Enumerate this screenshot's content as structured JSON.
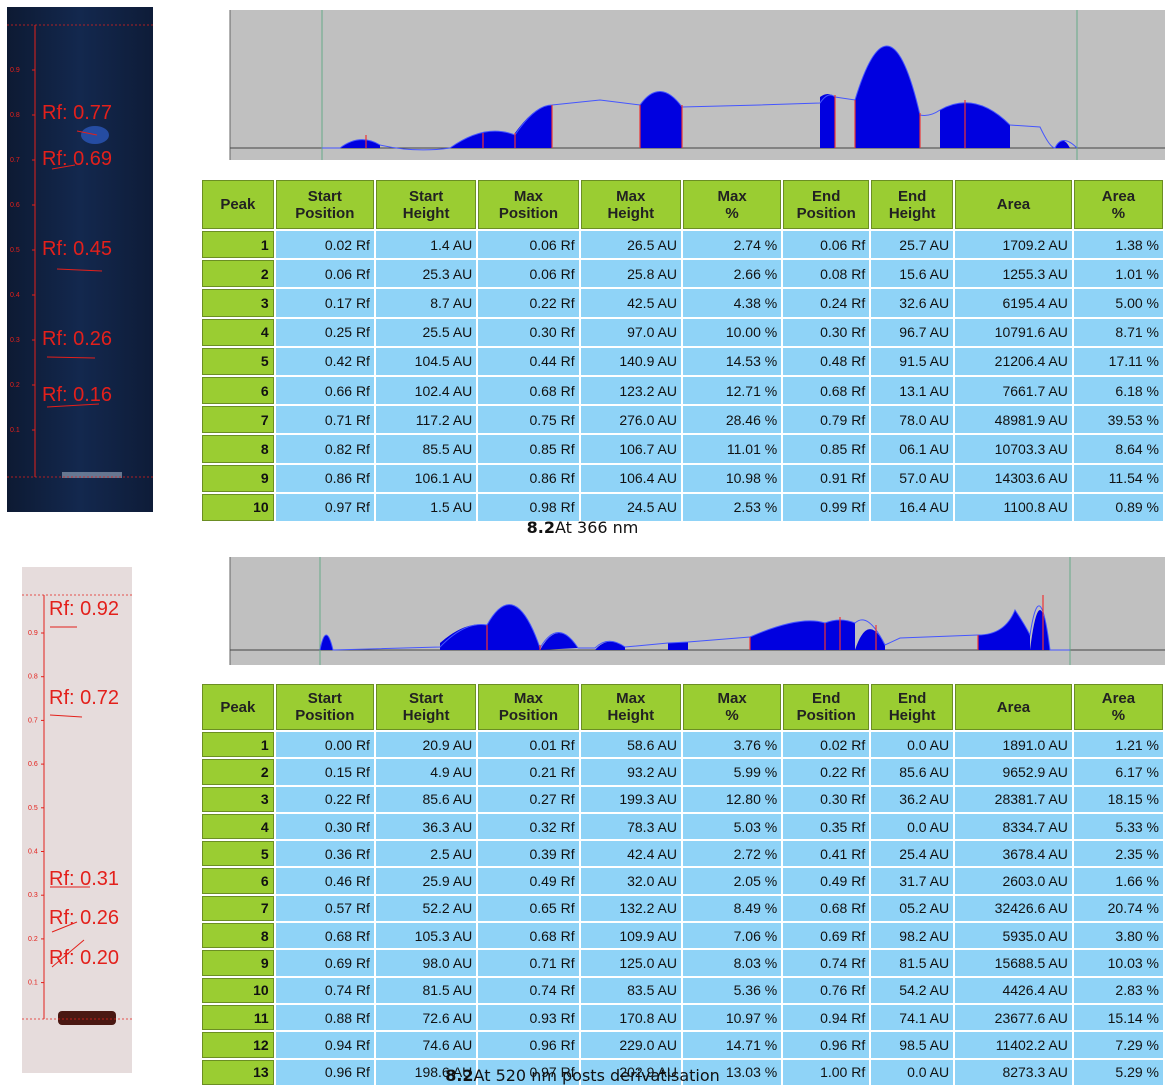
{
  "panels": [
    {
      "plate": {
        "rf_labels": [
          "Rf: 0.77",
          "Rf: 0.69",
          "Rf: 0.45",
          "Rf: 0.26",
          "Rf: 0.16"
        ],
        "ticks": [
          "0.9",
          "0.8",
          "0.7",
          "0.6",
          "0.5",
          "0.4",
          "0.3",
          "0.2",
          "0.1"
        ]
      },
      "table": {
        "header": [
          [
            "Peak"
          ],
          [
            "Start",
            "Position"
          ],
          [
            "Start",
            "Height"
          ],
          [
            "Max",
            "Position"
          ],
          [
            "Max",
            "Height"
          ],
          [
            "Max",
            "%"
          ],
          [
            "End",
            "Position"
          ],
          [
            "End",
            "Height"
          ],
          [
            "Area"
          ],
          [
            "Area",
            "%"
          ]
        ],
        "rows": [
          [
            "1",
            "0.02 Rf",
            "1.4 AU",
            "0.06 Rf",
            "26.5 AU",
            "2.74 %",
            "0.06 Rf",
            "25.7 AU",
            "1709.2 AU",
            "1.38 %"
          ],
          [
            "2",
            "0.06 Rf",
            "25.3 AU",
            "0.06 Rf",
            "25.8 AU",
            "2.66 %",
            "0.08 Rf",
            "15.6 AU",
            "1255.3 AU",
            "1.01 %"
          ],
          [
            "3",
            "0.17 Rf",
            "8.7 AU",
            "0.22 Rf",
            "42.5 AU",
            "4.38 %",
            "0.24 Rf",
            "32.6 AU",
            "6195.4 AU",
            "5.00 %"
          ],
          [
            "4",
            "0.25 Rf",
            "25.5 AU",
            "0.30 Rf",
            "97.0 AU",
            "10.00 %",
            "0.30 Rf",
            "96.7 AU",
            "10791.6 AU",
            "8.71 %"
          ],
          [
            "5",
            "0.42 Rf",
            "104.5 AU",
            "0.44 Rf",
            "140.9 AU",
            "14.53 %",
            "0.48 Rf",
            "91.5 AU",
            "21206.4 AU",
            "17.11 %"
          ],
          [
            "6",
            "0.66 Rf",
            "102.4 AU",
            "0.68 Rf",
            "123.2 AU",
            "12.71 %",
            "0.68 Rf",
            "13.1 AU",
            "7661.7 AU",
            "6.18 %"
          ],
          [
            "7",
            "0.71 Rf",
            "117.2 AU",
            "0.75 Rf",
            "276.0 AU",
            "28.46 %",
            "0.79 Rf",
            "78.0 AU",
            "48981.9 AU",
            "39.53 %"
          ],
          [
            "8",
            "0.82 Rf",
            "85.5 AU",
            "0.85 Rf",
            "106.7 AU",
            "11.01 %",
            "0.85 Rf",
            "06.1 AU",
            "10703.3 AU",
            "8.64 %"
          ],
          [
            "9",
            "0.86 Rf",
            "106.1 AU",
            "0.86 Rf",
            "106.4 AU",
            "10.98 %",
            "0.91 Rf",
            "57.0 AU",
            "14303.6 AU",
            "11.54 %"
          ],
          [
            "10",
            "0.97 Rf",
            "1.5 AU",
            "0.98 Rf",
            "24.5 AU",
            "2.53 %",
            "0.99 Rf",
            "16.4 AU",
            "1100.8 AU",
            "0.89 %"
          ]
        ]
      },
      "caption": {
        "number": "8.2",
        "text": "At 366 nm"
      }
    },
    {
      "plate": {
        "rf_labels": [
          "Rf: 0.92",
          "Rf: 0.72",
          "Rf: 0.31",
          "Rf: 0.26",
          "Rf: 0.20"
        ],
        "ticks": [
          "0.9",
          "0.8",
          "0.7",
          "0.6",
          "0.5",
          "0.4",
          "0.3",
          "0.2",
          "0.1"
        ]
      },
      "table": {
        "header": [
          [
            "Peak"
          ],
          [
            "Start",
            "Position"
          ],
          [
            "Start",
            "Height"
          ],
          [
            "Max",
            "Position"
          ],
          [
            "Max",
            "Height"
          ],
          [
            "Max",
            "%"
          ],
          [
            "End",
            "Position"
          ],
          [
            "End",
            "Height"
          ],
          [
            "Area"
          ],
          [
            "Area",
            "%"
          ]
        ],
        "rows": [
          [
            "1",
            "0.00 Rf",
            "20.9 AU",
            "0.01 Rf",
            "58.6 AU",
            "3.76 %",
            "0.02 Rf",
            "0.0 AU",
            "1891.0 AU",
            "1.21 %"
          ],
          [
            "2",
            "0.15 Rf",
            "4.9 AU",
            "0.21 Rf",
            "93.2 AU",
            "5.99 %",
            "0.22 Rf",
            "85.6 AU",
            "9652.9 AU",
            "6.17 %"
          ],
          [
            "3",
            "0.22 Rf",
            "85.6 AU",
            "0.27 Rf",
            "199.3 AU",
            "12.80 %",
            "0.30 Rf",
            "36.2 AU",
            "28381.7 AU",
            "18.15 %"
          ],
          [
            "4",
            "0.30 Rf",
            "36.3 AU",
            "0.32 Rf",
            "78.3 AU",
            "5.03 %",
            "0.35 Rf",
            "0.0 AU",
            "8334.7 AU",
            "5.33 %"
          ],
          [
            "5",
            "0.36 Rf",
            "2.5 AU",
            "0.39 Rf",
            "42.4 AU",
            "2.72 %",
            "0.41 Rf",
            "25.4 AU",
            "3678.4 AU",
            "2.35 %"
          ],
          [
            "6",
            "0.46 Rf",
            "25.9 AU",
            "0.49 Rf",
            "32.0 AU",
            "2.05 %",
            "0.49 Rf",
            "31.7 AU",
            "2603.0 AU",
            "1.66 %"
          ],
          [
            "7",
            "0.57 Rf",
            "52.2 AU",
            "0.65 Rf",
            "132.2 AU",
            "8.49 %",
            "0.68 Rf",
            "05.2 AU",
            "32426.6 AU",
            "20.74 %"
          ],
          [
            "8",
            "0.68 Rf",
            "105.3 AU",
            "0.68 Rf",
            "109.9 AU",
            "7.06 %",
            "0.69 Rf",
            "98.2 AU",
            "5935.0 AU",
            "3.80 %"
          ],
          [
            "9",
            "0.69 Rf",
            "98.0 AU",
            "0.71 Rf",
            "125.0 AU",
            "8.03 %",
            "0.74 Rf",
            "81.5 AU",
            "15688.5 AU",
            "10.03 %"
          ],
          [
            "10",
            "0.74 Rf",
            "81.5 AU",
            "0.74 Rf",
            "83.5 AU",
            "5.36 %",
            "0.76 Rf",
            "54.2 AU",
            "4426.4 AU",
            "2.83 %"
          ],
          [
            "11",
            "0.88 Rf",
            "72.6 AU",
            "0.93 Rf",
            "170.8 AU",
            "10.97 %",
            "0.94 Rf",
            "74.1 AU",
            "23677.6 AU",
            "15.14 %"
          ],
          [
            "12",
            "0.94 Rf",
            "74.6 AU",
            "0.96 Rf",
            "229.0 AU",
            "14.71 %",
            "0.96 Rf",
            "98.5 AU",
            "11402.2 AU",
            "7.29 %"
          ],
          [
            "13",
            "0.96 Rf",
            "198.6 AU",
            "0.97 Rf",
            "202.9 AU",
            "13.03 %",
            "1.00 Rf",
            "0.0 AU",
            "8273.3 AU",
            "5.29 %"
          ]
        ]
      },
      "caption": {
        "number": "8.2",
        "text": "At 520 nm posts derivatisation"
      }
    }
  ]
}
